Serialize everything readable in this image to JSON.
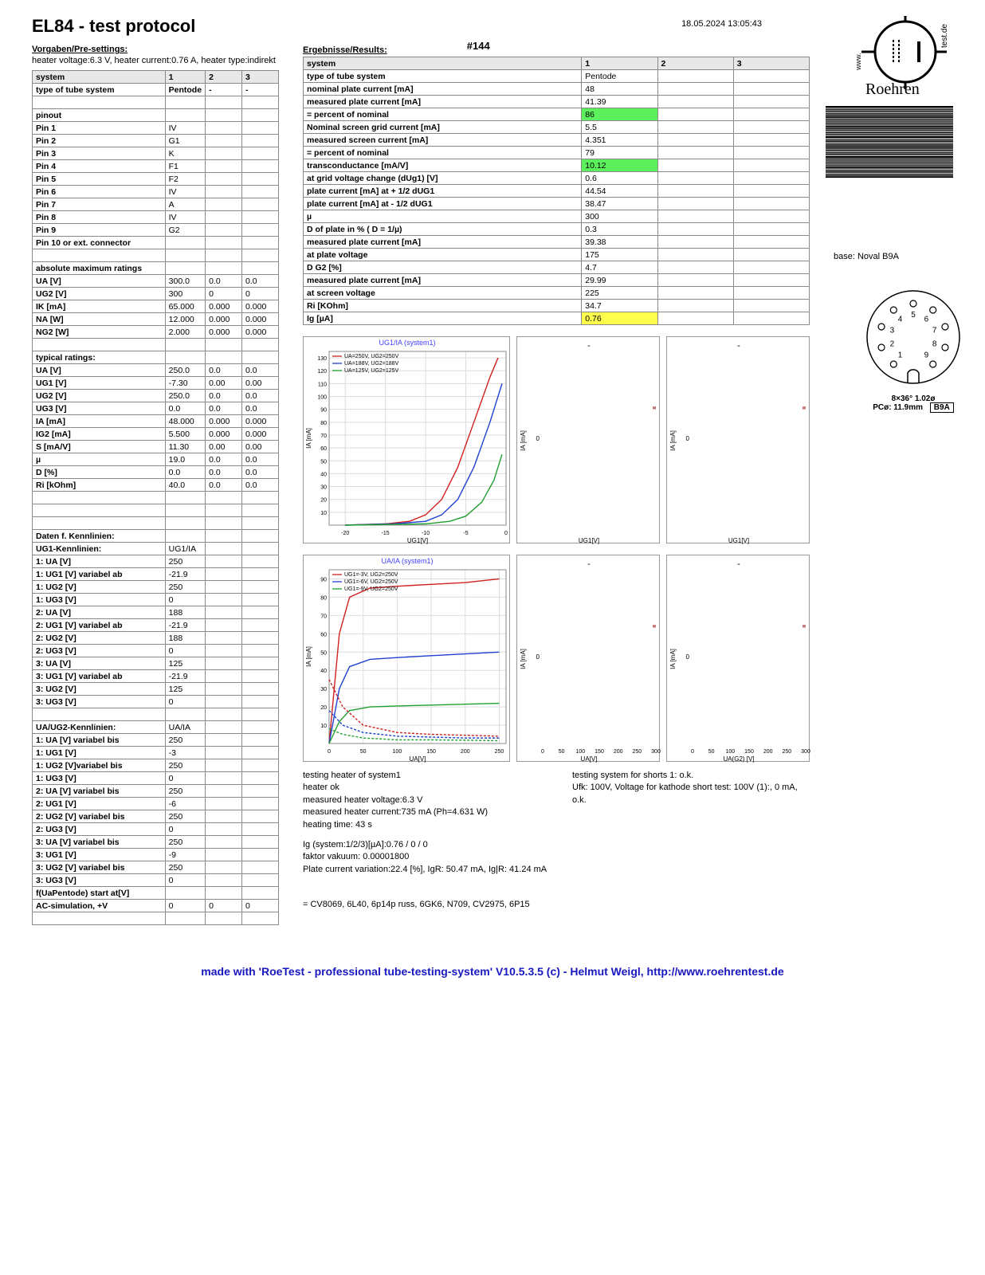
{
  "meta": {
    "title": "EL84  -  test protocol",
    "timestamp": "18.05.2024  13:05:43",
    "serial": "#144",
    "base_label": "base: Noval B9A",
    "pinout_caption1": "8×36°  1.02ø",
    "pinout_caption2": "PCø: 11.9mm",
    "pinout_badge": "B9A",
    "equivalents": "= CV8069,   6L40,   6p14p russ,   6GK6,   N709,   CV2975,   6P15",
    "footer": "made with 'RoeTest - professional tube-testing-system' V10.5.3.5 (c) - Helmut Weigl, http://www.roehrentest.de"
  },
  "presettings": {
    "heading": "Vorgaben/Pre-settings:",
    "heater_line": "heater voltage:6.3 V, heater current:0.76 A, heater type:indirekt",
    "cols": [
      "system",
      "1",
      "2",
      "3"
    ],
    "type_row": [
      "type of tube system",
      "Pentode",
      "-",
      "-"
    ],
    "pinout_header": "pinout",
    "pins": [
      [
        "Pin 1",
        "IV"
      ],
      [
        "Pin 2",
        "G1"
      ],
      [
        "Pin 3",
        "K"
      ],
      [
        "Pin 4",
        "F1"
      ],
      [
        "Pin 5",
        "F2"
      ],
      [
        "Pin 6",
        "IV"
      ],
      [
        "Pin 7",
        "A"
      ],
      [
        "Pin 8",
        "IV"
      ],
      [
        "Pin 9",
        "G2"
      ],
      [
        "Pin 10 or ext. connector",
        ""
      ]
    ],
    "abs_max_header": "absolute maximum ratings",
    "abs_max": [
      [
        "UA [V]",
        "300.0",
        "0.0",
        "0.0"
      ],
      [
        "UG2 [V]",
        "300",
        "0",
        "0"
      ],
      [
        "IK [mA]",
        "65.000",
        "0.000",
        "0.000"
      ],
      [
        "NA [W]",
        "12.000",
        "0.000",
        "0.000"
      ],
      [
        "NG2 [W]",
        "2.000",
        "0.000",
        "0.000"
      ]
    ],
    "typical_header": "typical ratings:",
    "typical": [
      [
        "UA [V]",
        "250.0",
        "0.0",
        "0.0"
      ],
      [
        "UG1 [V]",
        "-7.30",
        "0.00",
        "0.00"
      ],
      [
        "UG2 [V]",
        "250.0",
        "0.0",
        "0.0"
      ],
      [
        "UG3 [V]",
        "0.0",
        "0.0",
        "0.0"
      ],
      [
        "IA [mA]",
        "48.000",
        "0.000",
        "0.000"
      ],
      [
        "IG2 [mA]",
        "5.500",
        "0.000",
        "0.000"
      ],
      [
        "S [mA/V]",
        "11.30",
        "0.00",
        "0.00"
      ],
      [
        "µ",
        "19.0",
        "0.0",
        "0.0"
      ],
      [
        "D [%]",
        "0.0",
        "0.0",
        "0.0"
      ],
      [
        "Ri [kOhm]",
        "40.0",
        "0.0",
        "0.0"
      ]
    ],
    "kenn_header": "Daten f. Kennlinien:",
    "kenn": [
      [
        "UG1-Kennlinien:",
        "UG1/IA",
        "",
        ""
      ],
      [
        "1: UA [V]",
        "250",
        "",
        ""
      ],
      [
        "1: UG1 [V] variabel ab",
        "-21.9",
        "",
        ""
      ],
      [
        "1: UG2 [V]",
        "250",
        "",
        ""
      ],
      [
        "1: UG3 [V]",
        "0",
        "",
        ""
      ],
      [
        "2: UA [V]",
        "188",
        "",
        ""
      ],
      [
        "2: UG1 [V] variabel ab",
        "-21.9",
        "",
        ""
      ],
      [
        "2: UG2 [V]",
        "188",
        "",
        ""
      ],
      [
        "2: UG3 [V]",
        "0",
        "",
        ""
      ],
      [
        "3: UA [V]",
        "125",
        "",
        ""
      ],
      [
        "3: UG1 [V] variabel ab",
        "-21.9",
        "",
        ""
      ],
      [
        "3: UG2 [V]",
        "125",
        "",
        ""
      ],
      [
        "3: UG3 [V]",
        "0",
        "",
        ""
      ]
    ],
    "ua_kenn_header": "UA/UG2-Kennlinien:",
    "ua_kenn_first": "UA/IA",
    "ua_kenn": [
      [
        "1: UA [V] variabel bis",
        "250",
        "",
        ""
      ],
      [
        "1: UG1 [V]",
        "-3",
        "",
        ""
      ],
      [
        "1: UG2 [V]variabel bis",
        "250",
        "",
        ""
      ],
      [
        "1: UG3 [V]",
        "0",
        "",
        ""
      ],
      [
        "2: UA [V] variabel bis",
        "250",
        "",
        ""
      ],
      [
        "2: UG1 [V]",
        "-6",
        "",
        ""
      ],
      [
        "2: UG2 [V] variabel bis",
        "250",
        "",
        ""
      ],
      [
        "2: UG3 [V]",
        "0",
        "",
        ""
      ],
      [
        "3: UA [V] variabel bis",
        "250",
        "",
        ""
      ],
      [
        "3: UG1 [V]",
        "-9",
        "",
        ""
      ],
      [
        "3: UG2 [V] variabel bis",
        "250",
        "",
        ""
      ],
      [
        "3: UG3 [V]",
        "0",
        "",
        ""
      ],
      [
        "f(UaPentode) start at[V]",
        "",
        "",
        ""
      ],
      [
        "AC-simulation, +V",
        "0",
        "0",
        "0"
      ]
    ]
  },
  "results": {
    "heading": "Ergebnisse/Results:",
    "cols": [
      "system",
      "1",
      "2",
      "3"
    ],
    "rows": [
      {
        "label": "type of tube system",
        "v": [
          "Pentode",
          "",
          ""
        ],
        "bold": true
      },
      {
        "label": "nominal plate current [mA]",
        "v": [
          "48",
          "",
          ""
        ],
        "bold": true
      },
      {
        "label": "measured plate current [mA]",
        "v": [
          "41.39",
          "",
          ""
        ],
        "bold": true
      },
      {
        "label": "= percent of nominal",
        "v": [
          "86",
          "",
          ""
        ],
        "bold": true,
        "hl": "green"
      },
      {
        "label": "Nominal screen grid current [mA]",
        "v": [
          "5.5",
          "",
          ""
        ],
        "bold": true
      },
      {
        "label": "measured screen current [mA]",
        "v": [
          "4.351",
          "",
          ""
        ],
        "bold": true
      },
      {
        "label": "= percent of nominal",
        "v": [
          "79",
          "",
          ""
        ],
        "bold": true
      },
      {
        "label": "transconductance [mA/V]",
        "v": [
          "10.12",
          "",
          ""
        ],
        "bold": true,
        "hl": "green"
      },
      {
        "label": "at grid voltage change (dUg1) [V]",
        "v": [
          "0.6",
          "",
          ""
        ],
        "bold": true
      },
      {
        "label": "plate current [mA] at + 1/2 dUG1",
        "v": [
          "44.54",
          "",
          ""
        ],
        "bold": true
      },
      {
        "label": "plate current [mA] at - 1/2 dUG1",
        "v": [
          "38.47",
          "",
          ""
        ],
        "bold": true
      },
      {
        "label": "µ",
        "v": [
          "300",
          "",
          ""
        ],
        "bold": true
      },
      {
        "label": "D of plate in % ( D = 1/µ)",
        "v": [
          "0.3",
          "",
          ""
        ],
        "bold": true
      },
      {
        "label": "measured plate current [mA]",
        "v": [
          "39.38",
          "",
          ""
        ],
        "bold": true
      },
      {
        "label": "at plate voltage",
        "v": [
          "175",
          "",
          ""
        ],
        "bold": true
      },
      {
        "label": "D G2 [%]",
        "v": [
          "4.7",
          "",
          ""
        ],
        "bold": true
      },
      {
        "label": "measured plate current [mA]",
        "v": [
          "29.99",
          "",
          ""
        ],
        "bold": true
      },
      {
        "label": "at screen voltage",
        "v": [
          "225",
          "",
          ""
        ],
        "bold": true
      },
      {
        "label": "Ri [KOhm]",
        "v": [
          "34.7",
          "",
          ""
        ],
        "bold": true
      },
      {
        "label": "Ig [µA]",
        "v": [
          "0.76",
          "",
          ""
        ],
        "bold": true,
        "hl": "yellow"
      }
    ]
  },
  "charts": {
    "row1": {
      "main": {
        "title": "UG1/IA (system1)",
        "legend": [
          "UA=250V, UG2=250V",
          "UA=188V, UG2=188V",
          "UA=125V, UG2=125V"
        ],
        "colors": [
          "#d02020",
          "#2040d0",
          "#20a030"
        ],
        "xlabel": "UG1[V]",
        "ylabel": "IA [mA]",
        "xlim": [
          -22,
          0
        ],
        "ylim": [
          0,
          135
        ],
        "xticks": [
          -20,
          -15,
          -10,
          -5,
          0
        ],
        "yticks": [
          10,
          20,
          30,
          40,
          50,
          60,
          70,
          80,
          90,
          100,
          110,
          120,
          130
        ],
        "series": [
          {
            "color": "#d02020",
            "pts": [
              [
                -20,
                0
              ],
              [
                -15,
                1
              ],
              [
                -12,
                3
              ],
              [
                -10,
                8
              ],
              [
                -8,
                20
              ],
              [
                -6,
                45
              ],
              [
                -4,
                80
              ],
              [
                -2,
                115
              ],
              [
                -1,
                130
              ]
            ]
          },
          {
            "color": "#2040d0",
            "pts": [
              [
                -20,
                0
              ],
              [
                -14,
                1
              ],
              [
                -10,
                3
              ],
              [
                -8,
                8
              ],
              [
                -6,
                20
              ],
              [
                -4,
                45
              ],
              [
                -2,
                80
              ],
              [
                -0.5,
                110
              ]
            ]
          },
          {
            "color": "#20a030",
            "pts": [
              [
                -20,
                0
              ],
              [
                -10,
                1
              ],
              [
                -7,
                3
              ],
              [
                -5,
                7
              ],
              [
                -3,
                18
              ],
              [
                -1.5,
                35
              ],
              [
                -0.5,
                55
              ]
            ]
          }
        ]
      },
      "small1": {
        "xlabel": "UG1[V]",
        "ylabel": "IA [mA]"
      },
      "small2": {
        "xlabel": "UG1[V]",
        "ylabel": "IA [mA]"
      }
    },
    "row2": {
      "main": {
        "title": "UA/IA (system1)",
        "legend": [
          "UG1=-3V, UG2=250V",
          "UG1=-6V, UG2=250V",
          "UG1=-9V, UG2=250V"
        ],
        "colors": [
          "#d02020",
          "#2040d0",
          "#20a030"
        ],
        "xlabel": "UA[V]",
        "ylabel": "IA [mA]",
        "xlim": [
          0,
          260
        ],
        "ylim": [
          0,
          95
        ],
        "xticks": [
          0,
          50,
          100,
          150,
          200,
          250
        ],
        "yticks": [
          10,
          20,
          30,
          40,
          50,
          60,
          70,
          80,
          90
        ],
        "series": [
          {
            "color": "#d02020",
            "pts": [
              [
                0,
                0
              ],
              [
                15,
                60
              ],
              [
                30,
                80
              ],
              [
                60,
                85
              ],
              [
                100,
                86
              ],
              [
                150,
                87
              ],
              [
                200,
                88
              ],
              [
                250,
                90
              ]
            ]
          },
          {
            "color": "#2040d0",
            "pts": [
              [
                0,
                0
              ],
              [
                15,
                30
              ],
              [
                30,
                42
              ],
              [
                60,
                46
              ],
              [
                100,
                47
              ],
              [
                150,
                48
              ],
              [
                200,
                49
              ],
              [
                250,
                50
              ]
            ]
          },
          {
            "color": "#20a030",
            "pts": [
              [
                0,
                0
              ],
              [
                15,
                12
              ],
              [
                30,
                18
              ],
              [
                60,
                20
              ],
              [
                100,
                20.5
              ],
              [
                150,
                21
              ],
              [
                200,
                21.5
              ],
              [
                250,
                22
              ]
            ]
          }
        ],
        "series_dashed": [
          {
            "color": "#d02020",
            "pts": [
              [
                0,
                35
              ],
              [
                20,
                20
              ],
              [
                50,
                10
              ],
              [
                100,
                6
              ],
              [
                150,
                5
              ],
              [
                200,
                4.5
              ],
              [
                250,
                4
              ]
            ]
          },
          {
            "color": "#2040d0",
            "pts": [
              [
                0,
                18
              ],
              [
                20,
                10
              ],
              [
                50,
                6
              ],
              [
                100,
                4
              ],
              [
                150,
                3.5
              ],
              [
                200,
                3
              ],
              [
                250,
                3
              ]
            ]
          },
          {
            "color": "#20a030",
            "pts": [
              [
                0,
                8
              ],
              [
                20,
                5
              ],
              [
                50,
                3
              ],
              [
                100,
                2
              ],
              [
                150,
                2
              ],
              [
                200,
                1.8
              ],
              [
                250,
                1.5
              ]
            ]
          }
        ]
      },
      "small1": {
        "xlabel": "UA[V]",
        "ylabel": "IA [mA]",
        "xticks": [
          0,
          50,
          100,
          150,
          200,
          250,
          300
        ]
      },
      "small2": {
        "xlabel": "UA(G2) [V]",
        "ylabel": "IA [mA]",
        "xticks": [
          0,
          50,
          100,
          150,
          200,
          250,
          300
        ]
      }
    }
  },
  "footer_notes": {
    "left": [
      "testing heater of system1",
      "heater ok",
      "measured heater voltage:6.3 V",
      "measured heater current:735 mA (Ph=4.631 W)",
      "heating time: 43 s"
    ],
    "right": [
      "testing system for shorts 1: o.k.",
      "Ufk: 100V, Voltage for kathode short test: 100V (1):, 0 mA, o.k."
    ],
    "bottom": [
      "Ig (system:1/2/3)[µA]:0.76 / 0 / 0",
      "faktor vakuum: 0.00001800",
      "Plate current variation:22.4 [%], IgR: 50.47 mA, Ig|R: 41.24 mA"
    ]
  }
}
